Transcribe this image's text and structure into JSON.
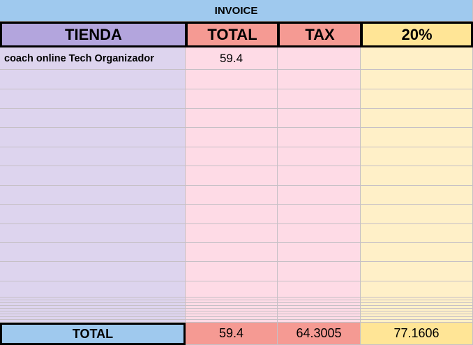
{
  "title": "INVOICE",
  "header": [
    "TIENDA",
    "TOTAL",
    "TAX",
    "20%"
  ],
  "rows": [
    [
      "coach online Tech Organizador",
      59.4
    ]
  ],
  "footer": [
    "TOTAL",
    59.4,
    64.3005,
    77.1606
  ]
}
